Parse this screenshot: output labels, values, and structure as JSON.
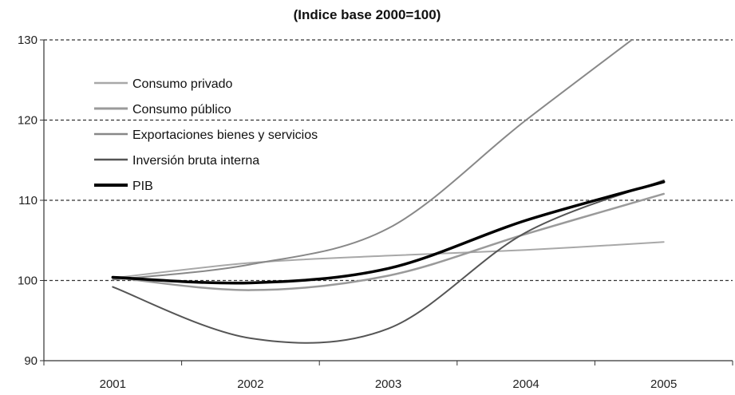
{
  "chart_data": {
    "type": "line",
    "title": "(Indice base 2000=100)",
    "xlabel": "",
    "ylabel": "",
    "categories": [
      "2001",
      "2002",
      "2003",
      "2004",
      "2005"
    ],
    "ylim": [
      90,
      130
    ],
    "yticks": [
      90,
      100,
      110,
      120,
      130
    ],
    "grid": "horizontal-dashed",
    "legend_position": "top-left",
    "series": [
      {
        "name": "Consumo privado",
        "color": "#a8a8a8",
        "width": 2,
        "values": [
          100.3,
          102.2,
          103.1,
          103.8,
          104.8
        ]
      },
      {
        "name": "Consumo público",
        "color": "#9a9a9a",
        "width": 2.5,
        "values": [
          100.4,
          98.8,
          100.6,
          105.8,
          110.8
        ]
      },
      {
        "name": "Exportaciones bienes y servicios",
        "color": "#888888",
        "width": 2,
        "values": [
          100.1,
          102.0,
          106.5,
          120.0,
          133.0
        ]
      },
      {
        "name": "Inversión bruta interna",
        "color": "#555555",
        "width": 2,
        "values": [
          99.2,
          92.8,
          94.0,
          106.0,
          112.5
        ]
      },
      {
        "name": "PIB",
        "color": "#000000",
        "width": 3.5,
        "values": [
          100.4,
          99.7,
          101.5,
          107.5,
          112.3
        ]
      }
    ]
  }
}
